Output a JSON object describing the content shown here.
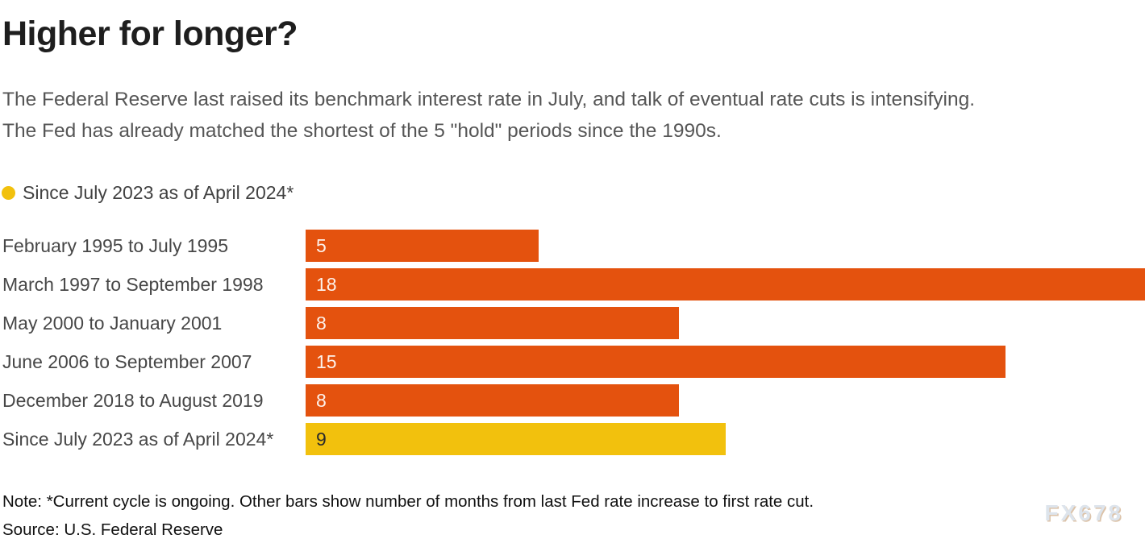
{
  "title": "Higher for longer?",
  "subtitle_lines": [
    "The Federal Reserve last raised its benchmark interest rate in July, and talk of eventual rate cuts is intensifying.",
    "The Fed has already matched the shortest of the 5 \"hold\" periods since the 1990s."
  ],
  "legend": {
    "label": "Since July 2023 as of April 2024*",
    "dot_color": "#f2c10d"
  },
  "chart_data": {
    "type": "bar",
    "orientation": "horizontal",
    "title": "Higher for longer?",
    "xlabel": "Months from last Fed rate increase to first rate cut",
    "ylabel": "",
    "xlim": [
      0,
      18
    ],
    "grid": false,
    "categories": [
      "February 1995 to July 1995",
      "March 1997 to September 1998",
      "May 2000 to January 2001",
      "June 2006 to September 2007",
      "December 2018 to August 2019",
      "Since July 2023 as of April 2024*"
    ],
    "values": [
      5,
      18,
      8,
      15,
      8,
      9
    ],
    "bar_colors": [
      "#e4520e",
      "#e4520e",
      "#e4520e",
      "#e4520e",
      "#e4520e",
      "#f2c10d"
    ],
    "value_label_colors": [
      "#fdf1ea",
      "#fdf1ea",
      "#fdf1ea",
      "#fdf1ea",
      "#fdf1ea",
      "#2b2b2b"
    ]
  },
  "note": "Note: *Current cycle is ongoing. Other bars show number of months from last Fed rate increase to first rate cut.",
  "source": "Source: U.S. Federal Reserve",
  "watermark": "FX678",
  "colors": {
    "highlight_bar": "#f2c10d",
    "default_bar": "#e4520e",
    "title_text": "#1e1e1e",
    "subtitle_text": "#565656",
    "watermark_text": "#dde4ec"
  }
}
